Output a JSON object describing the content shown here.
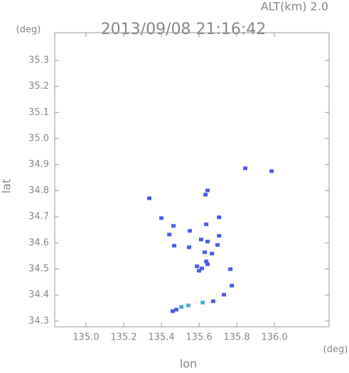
{
  "chart_data": {
    "type": "scatter",
    "title": "2013/09/08 21:16:42",
    "subtitle": "ALT(km) 2.0",
    "x_unit": "(deg)",
    "y_unit": "(deg)",
    "xlabel": "lon",
    "ylabel": "lat",
    "xlim": [
      134.834,
      136.29
    ],
    "ylim": [
      34.278,
      35.406
    ],
    "xticks": [
      {
        "value": 135.0,
        "label": "135.0"
      },
      135.2,
      135.4,
      135.6,
      135.8,
      {
        "value": 136.0,
        "label": "136.0"
      }
    ],
    "yticks": [
      34.3,
      34.4,
      34.5,
      34.6,
      34.7,
      34.8,
      34.9,
      {
        "value": 35.0,
        "label": "35.0"
      },
      35.1,
      35.2,
      35.3
    ],
    "x": [
      135.845,
      135.985,
      135.336,
      135.4,
      135.442,
      135.464,
      135.551,
      135.638,
      135.706,
      135.645,
      135.634,
      135.611,
      135.706,
      135.645,
      135.547,
      135.698,
      135.63,
      135.668,
      135.638,
      135.589,
      135.615,
      135.645,
      135.6,
      135.766,
      135.774,
      135.732,
      135.675,
      135.619,
      135.543,
      135.506,
      135.479,
      135.46,
      135.468
    ],
    "y": [
      34.886,
      34.875,
      34.771,
      34.695,
      34.632,
      34.665,
      34.646,
      34.671,
      34.698,
      34.801,
      34.785,
      34.613,
      34.627,
      34.605,
      34.583,
      34.592,
      34.564,
      34.559,
      34.529,
      34.51,
      34.502,
      34.518,
      34.493,
      34.499,
      34.436,
      34.401,
      34.376,
      34.371,
      34.36,
      34.354,
      34.344,
      34.338,
      34.589
    ],
    "colors": [
      "#4a5ae8",
      "#4a5ae8",
      "#4a5ae8",
      "#4a5ae8",
      "#4a5ae8",
      "#4a5ae8",
      "#4a5ae8",
      "#4a5ae8",
      "#4a5ae8",
      "#4a5ae8",
      "#4a5ae8",
      "#4a5ae8",
      "#4a5ae8",
      "#4a5ae8",
      "#4a5ae8",
      "#4a5ae8",
      "#4a5ae8",
      "#4a5ae8",
      "#4a5ae8",
      "#4a5ae8",
      "#4a5ae8",
      "#4a5ae8",
      "#4a5ae8",
      "#4a5ae8",
      "#4a5ae8",
      "#4a5ae8",
      "#4a5ae8",
      "#4aa8e0",
      "#4aa8e0",
      "#4aa8e0",
      "#4a5ae8",
      "#4a5ae8",
      "#4a5ae8"
    ]
  }
}
